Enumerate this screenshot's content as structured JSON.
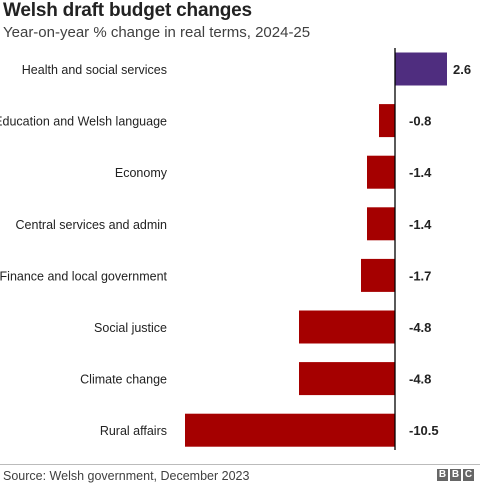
{
  "title": "Welsh draft budget changes",
  "subtitle": "Year-on-year % change in real terms, 2024-25",
  "source": "Source: Welsh government, December 2023",
  "logo_letters": [
    "B",
    "B",
    "C"
  ],
  "colors": {
    "positive": "#4f2d7f",
    "negative": "#a50000",
    "axis": "#000000"
  },
  "chart_data": {
    "type": "bar",
    "orientation": "horizontal",
    "categories": [
      "Health and social services",
      "Education and Welsh language",
      "Economy",
      "Central services and admin",
      "Finance and local government",
      "Social justice",
      "Climate change",
      "Rural affairs"
    ],
    "values": [
      2.6,
      -0.8,
      -1.4,
      -1.4,
      -1.7,
      -4.8,
      -4.8,
      -10.5
    ],
    "value_labels": [
      "2.6",
      "-0.8",
      "-1.4",
      "-1.4",
      "-1.7",
      "-4.8",
      "-4.8",
      "-10.5"
    ],
    "title": "Welsh draft budget changes",
    "xlim": [
      -10.5,
      2.6
    ],
    "grid": false,
    "legend": "none"
  }
}
